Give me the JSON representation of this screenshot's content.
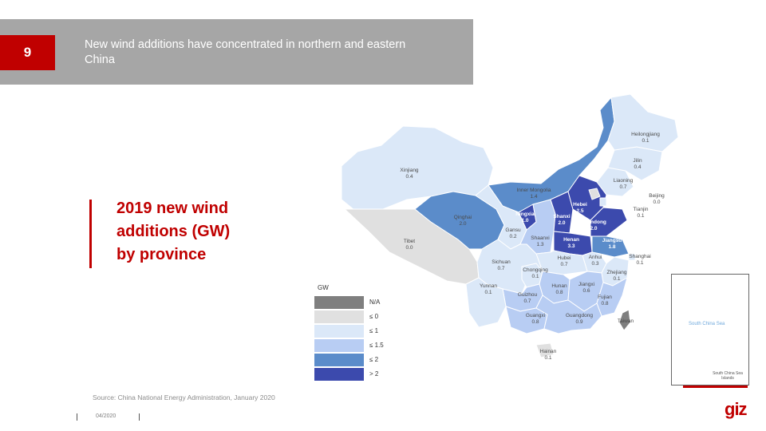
{
  "header": {
    "page_number": "9",
    "title": "New wind additions have concentrated in northern and eastern China"
  },
  "main_title": {
    "line1": "2019 new wind",
    "line2": "additions (GW)",
    "line3": "by province"
  },
  "legend": {
    "title": "GW",
    "items": [
      {
        "label": "N/A",
        "color": "#7f7f7f"
      },
      {
        "label": "≤ 0",
        "color": "#e0e0e0"
      },
      {
        "label": "≤ 1",
        "color": "#dbe8f8"
      },
      {
        "label": "≤ 1.5",
        "color": "#b8cdf3"
      },
      {
        "label": "≤ 2",
        "color": "#5b8cca"
      },
      {
        "label": "> 2",
        "color": "#3c4aad"
      }
    ]
  },
  "provinces": [
    {
      "name": "Heilongjiang",
      "value": "0.1"
    },
    {
      "name": "Jilin",
      "value": "0.4"
    },
    {
      "name": "Liaoning",
      "value": "0.7"
    },
    {
      "name": "Beijing",
      "value": "0.0"
    },
    {
      "name": "Tianjin",
      "value": "0.1"
    },
    {
      "name": "Hebei",
      "value": "2.5"
    },
    {
      "name": "Shanxi",
      "value": "2.0"
    },
    {
      "name": "Shandong",
      "value": "2.0"
    },
    {
      "name": "Henan",
      "value": "3.3"
    },
    {
      "name": "Jiangsu",
      "value": "1.8"
    },
    {
      "name": "Shanghai",
      "value": "0.1"
    },
    {
      "name": "Anhui",
      "value": "0.3"
    },
    {
      "name": "Zhejiang",
      "value": "0.1"
    },
    {
      "name": "Hubei",
      "value": "0.7"
    },
    {
      "name": "Shaanxi",
      "value": "1.3"
    },
    {
      "name": "Ningxia",
      "value": "1.0"
    },
    {
      "name": "Inner Mongolia",
      "value": "1.4"
    },
    {
      "name": "Gansu",
      "value": "0.2"
    },
    {
      "name": "Qinghai",
      "value": "2.0"
    },
    {
      "name": "Xinjiang",
      "value": "0.4"
    },
    {
      "name": "Tibet",
      "value": "0.0"
    },
    {
      "name": "Sichuan",
      "value": "0.7"
    },
    {
      "name": "Chongqing",
      "value": "0.1"
    },
    {
      "name": "Hunan",
      "value": "0.8"
    },
    {
      "name": "Jiangxi",
      "value": "0.6"
    },
    {
      "name": "Fujian",
      "value": "0.8"
    },
    {
      "name": "Guizhou",
      "value": "0.7"
    },
    {
      "name": "Yunnan",
      "value": "0.1"
    },
    {
      "name": "Guangxi",
      "value": "0.8"
    },
    {
      "name": "Guangdong",
      "value": "0.9"
    },
    {
      "name": "Hainan",
      "value": "0.1"
    },
    {
      "name": "Taiwan",
      "value": ""
    }
  ],
  "inset": {
    "sea_label": "South China Sea",
    "caption": "South China Sea Islands"
  },
  "source": "Source: China National Energy Administration, January 2020",
  "footer": {
    "date": "04/2020",
    "logo": "giz"
  },
  "colors": {
    "accent": "#c00000",
    "header_gray": "#a6a6a6"
  }
}
